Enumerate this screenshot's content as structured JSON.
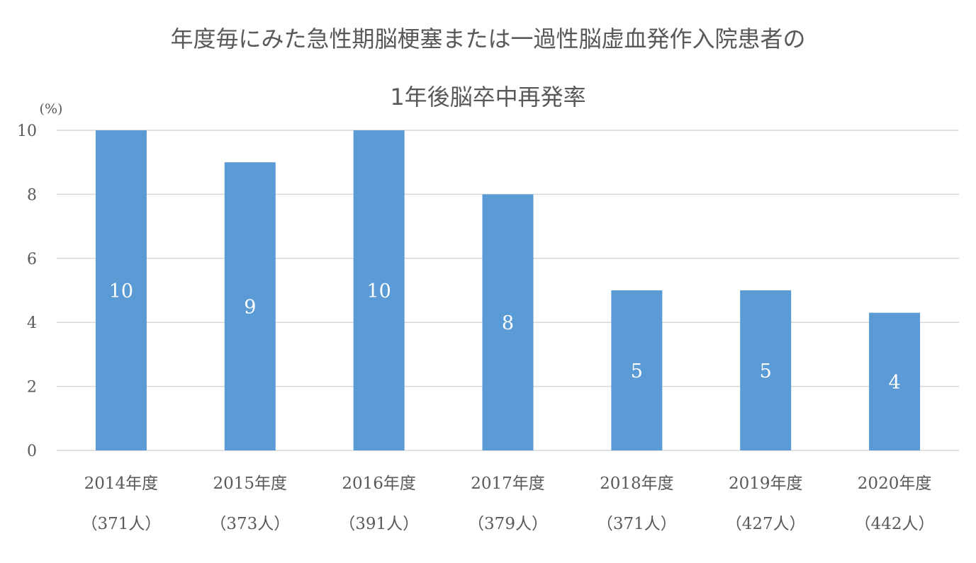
{
  "chart_data": {
    "type": "bar",
    "title_lines": [
      "年度毎にみた急性期脳梗塞または一過性脳虚血発作入院患者の",
      "1年後脳卒中再発率"
    ],
    "y_unit": "(%)",
    "categories": [
      "2014年度",
      "2015年度",
      "2016年度",
      "2017年度",
      "2018年度",
      "2019年度",
      "2020年度"
    ],
    "category_sublabels": [
      "（371人）",
      "（373人）",
      "（391人）",
      "（379人）",
      "（371人）",
      "（427人）",
      "（442人）"
    ],
    "values": [
      10,
      9,
      10,
      8,
      5,
      5,
      4.3
    ],
    "data_labels": [
      "10",
      "9",
      "10",
      "8",
      "5",
      "5",
      "4"
    ],
    "ylim": [
      0,
      10
    ],
    "yticks": [
      0,
      2,
      4,
      6,
      8,
      10
    ],
    "grid": true,
    "bar_color": "#5B9BD5",
    "grid_color": "#D9D9D9"
  }
}
